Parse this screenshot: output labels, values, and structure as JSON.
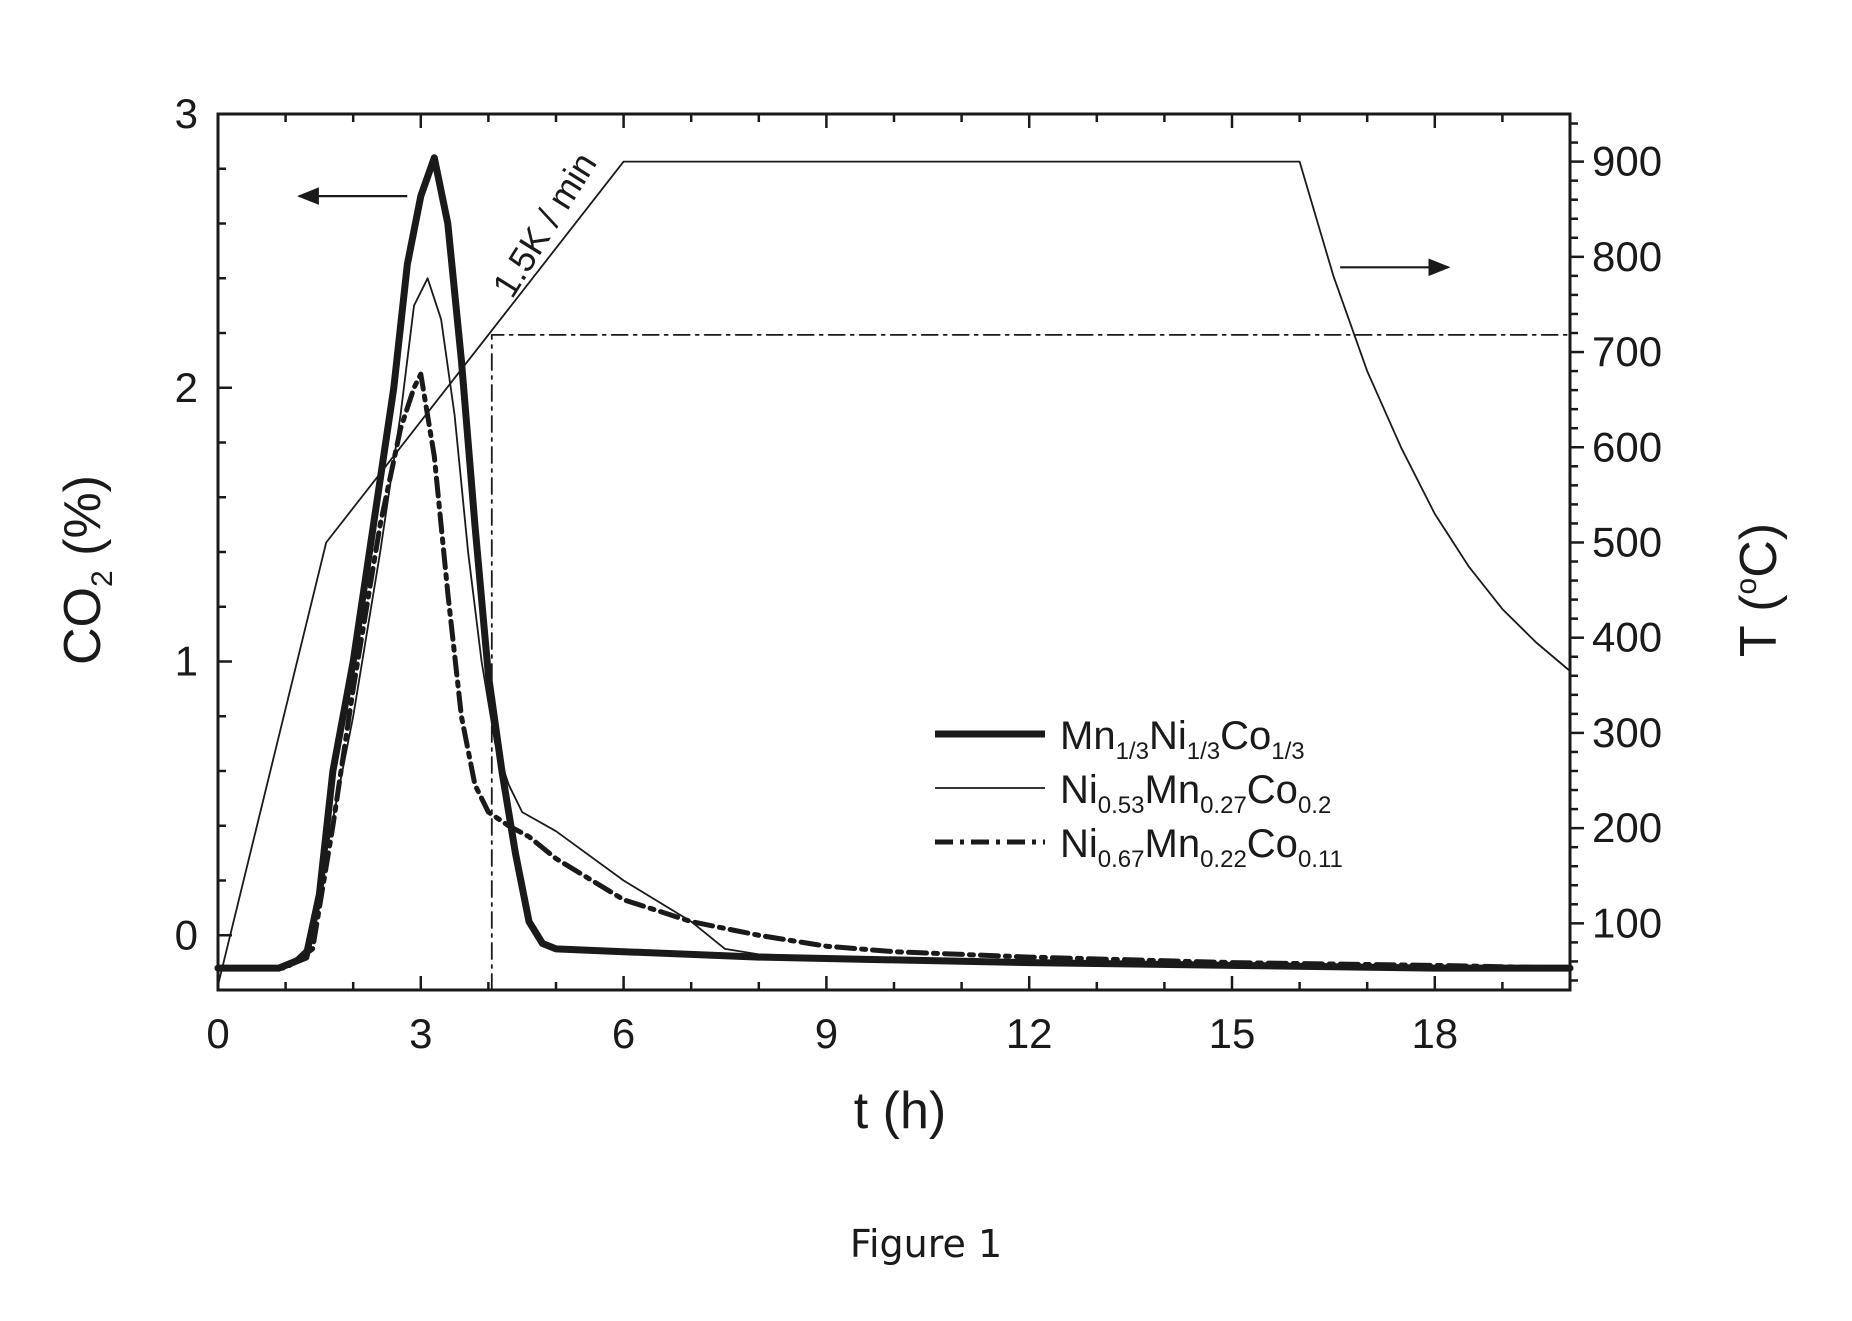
{
  "caption": "Figure 1",
  "chart_data": {
    "type": "line",
    "xlabel": "t (h)",
    "xlim": [
      0,
      20
    ],
    "x_ticks": [
      0,
      3,
      6,
      9,
      12,
      15,
      18
    ],
    "x_tick_labels": [
      "0",
      "3",
      "6",
      "9",
      "12",
      "15",
      "18"
    ],
    "left_axis": {
      "label_main": "CO",
      "label_sub": "2",
      "label_tail": " (%)",
      "ylim": [
        -0.2,
        3
      ],
      "ticks": [
        0,
        1,
        2,
        3
      ],
      "tick_labels": [
        "0",
        "1",
        "2",
        "3"
      ]
    },
    "right_axis": {
      "label_main": "T (",
      "label_sup": "o",
      "label_tail": "C)",
      "ylim": [
        30,
        950
      ],
      "ticks": [
        100,
        200,
        300,
        400,
        500,
        600,
        700,
        800,
        900
      ],
      "tick_labels": [
        "100",
        "200",
        "300",
        "400",
        "500",
        "600",
        "700",
        "800",
        "900"
      ]
    },
    "annotation": "1.5K / min",
    "series": [
      {
        "name_parts": [
          [
            "Mn",
            ""
          ],
          [
            "1/3",
            "sub"
          ],
          [
            "Ni",
            ""
          ],
          [
            "1/3",
            "sub"
          ],
          [
            "Co",
            ""
          ],
          [
            "1/3",
            "sub"
          ]
        ],
        "axis": "left",
        "style": "thick-solid",
        "x": [
          0,
          0.9,
          1.3,
          1.5,
          1.7,
          2.0,
          2.3,
          2.6,
          2.8,
          3.0,
          3.2,
          3.4,
          3.6,
          3.8,
          4.0,
          4.2,
          4.4,
          4.6,
          4.8,
          5.0,
          6.0,
          8.0,
          10.0,
          12.0,
          15.0,
          18.0,
          20.0
        ],
        "y": [
          -0.12,
          -0.12,
          -0.08,
          0.15,
          0.6,
          1.0,
          1.5,
          2.0,
          2.45,
          2.7,
          2.84,
          2.6,
          2.1,
          1.5,
          0.95,
          0.6,
          0.3,
          0.05,
          -0.03,
          -0.05,
          -0.06,
          -0.08,
          -0.09,
          -0.1,
          -0.11,
          -0.12,
          -0.12
        ]
      },
      {
        "name_parts": [
          [
            "Ni",
            ""
          ],
          [
            "0.53",
            "sub"
          ],
          [
            "Mn",
            ""
          ],
          [
            "0.27",
            "sub"
          ],
          [
            "Co",
            ""
          ],
          [
            "0.2",
            "sub"
          ]
        ],
        "axis": "left",
        "style": "thin-solid",
        "x": [
          0,
          1.0,
          1.3,
          1.6,
          2.0,
          2.4,
          2.7,
          2.9,
          3.1,
          3.3,
          3.5,
          3.7,
          3.9,
          4.1,
          4.3,
          4.5,
          5.0,
          6.0,
          7.0,
          7.5,
          8.0,
          12.0,
          20.0
        ],
        "y": [
          -0.12,
          -0.12,
          -0.05,
          0.3,
          0.8,
          1.4,
          1.9,
          2.3,
          2.4,
          2.25,
          1.9,
          1.4,
          1.0,
          0.7,
          0.55,
          0.45,
          0.38,
          0.2,
          0.05,
          -0.05,
          -0.07,
          -0.1,
          -0.12
        ]
      },
      {
        "name_parts": [
          [
            "Ni",
            ""
          ],
          [
            "0.67",
            "sub"
          ],
          [
            "Mn",
            ""
          ],
          [
            "0.22",
            "sub"
          ],
          [
            "Co",
            ""
          ],
          [
            "0.11",
            "sub"
          ]
        ],
        "axis": "left",
        "style": "dash-dot",
        "x": [
          0,
          1.0,
          1.4,
          1.7,
          2.0,
          2.4,
          2.7,
          2.9,
          3.0,
          3.2,
          3.4,
          3.6,
          3.8,
          4.0,
          4.3,
          4.6,
          5.0,
          6.0,
          7.0,
          8.0,
          9.0,
          10.0,
          12.0,
          15.0,
          18.0,
          20.0
        ],
        "y": [
          -0.12,
          -0.12,
          -0.05,
          0.4,
          0.9,
          1.5,
          1.85,
          2.0,
          2.05,
          1.75,
          1.25,
          0.8,
          0.55,
          0.45,
          0.4,
          0.36,
          0.28,
          0.13,
          0.05,
          0.0,
          -0.04,
          -0.06,
          -0.08,
          -0.1,
          -0.11,
          -0.12
        ]
      },
      {
        "name": "T",
        "axis": "right",
        "style": "thin-solid",
        "x": [
          0,
          1.6,
          6.0,
          16.0,
          16.5,
          17.0,
          17.5,
          18.0,
          18.5,
          19.0,
          19.5,
          20.0
        ],
        "y": [
          35,
          500,
          900,
          900,
          780,
          680,
          600,
          530,
          475,
          430,
          395,
          365
        ]
      },
      {
        "name": "reference",
        "axis": "right",
        "style": "thin-dash-dot",
        "x": [
          4.05,
          4.05,
          20.0
        ],
        "y": [
          30,
          718,
          718
        ]
      }
    ],
    "arrows": [
      {
        "name": "left-axis-arrow",
        "from_x": 2.8,
        "to_x": 1.2,
        "y": 2.7,
        "axis": "left"
      },
      {
        "name": "right-axis-arrow",
        "from_x": 16.6,
        "to_x": 18.2,
        "y": 2.44,
        "axis": "left"
      }
    ],
    "legend_position": "center-right"
  }
}
